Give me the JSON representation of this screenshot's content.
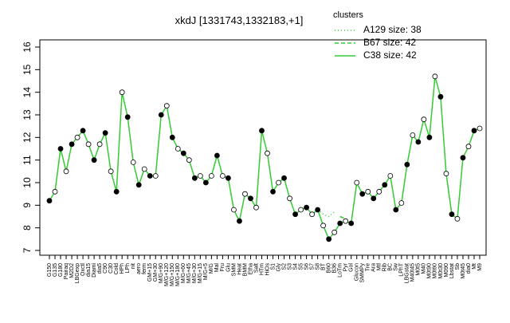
{
  "chart_data": {
    "type": "line",
    "title": "xkdJ [1331743,1332183,+1]",
    "legend_title": "clusters",
    "ylim": [
      7,
      16
    ],
    "yticks": [
      7,
      8,
      9,
      10,
      11,
      12,
      13,
      14,
      15,
      16
    ],
    "categories": [
      "G150",
      "G135",
      "G180",
      "Pairaq",
      "M2D2",
      "LBGexp",
      "Oxctl",
      "dia15",
      "Diami",
      "dia5",
      "C90",
      "C30",
      "Cold",
      "HPh",
      "LPh",
      "nit",
      "aero",
      "ferm",
      "GM+15",
      "GM+30",
      "M/G+90",
      "M/G+120",
      "M/G+150",
      "M/G+180",
      "M/G+60",
      "M/G+45",
      "M/G+30",
      "M/G+15",
      "M/G+5",
      "M/G",
      "Mal",
      "Fru",
      "Glu",
      "SMM",
      "Heat",
      "BMM",
      "Etha",
      "Salt",
      "HTm",
      "HiOs",
      "S1",
      "Gly",
      "S2",
      "S3",
      "S4",
      "S5",
      "S6",
      "S7",
      "S8",
      "BT",
      "B60",
      "B36",
      "LoTm",
      "Pyr",
      "Gol",
      "Glucon",
      "SMMPy",
      "Tre",
      "Ara",
      "Mtl",
      "Rib",
      "BC",
      "Sw",
      "LPhT",
      "LBGstat",
      "M40t45",
      "M0t5",
      "M40",
      "M0t90",
      "M0t60",
      "M0t30",
      "M090",
      "Lbstat",
      "Sb",
      "M0t45",
      "dia0",
      "Mt",
      "M9"
    ],
    "series": [
      {
        "name": "A129 size: 38",
        "color": "#33cc33",
        "style": "dotted",
        "values": [
          null,
          null,
          null,
          null,
          null,
          null,
          null,
          null,
          null,
          null,
          null,
          null,
          null,
          null,
          null,
          null,
          null,
          null,
          null,
          null,
          null,
          null,
          null,
          null,
          null,
          null,
          null,
          null,
          null,
          null,
          null,
          null,
          null,
          null,
          null,
          null,
          null,
          null,
          null,
          null,
          null,
          null,
          null,
          null,
          null,
          null,
          null,
          null,
          8.8,
          8.6,
          8.5,
          8.7,
          null,
          null,
          null,
          null,
          null,
          null,
          null,
          null,
          null,
          null,
          null,
          null,
          null,
          null,
          null,
          null,
          null,
          null,
          null,
          null,
          null,
          null,
          null,
          null,
          null,
          null
        ]
      },
      {
        "name": "B67 size: 42",
        "color": "#33cc33",
        "style": "dashed",
        "values": [
          null,
          null,
          null,
          null,
          null,
          null,
          null,
          null,
          null,
          null,
          null,
          null,
          null,
          null,
          null,
          null,
          null,
          null,
          null,
          null,
          null,
          null,
          null,
          null,
          null,
          null,
          null,
          null,
          null,
          null,
          null,
          null,
          null,
          null,
          null,
          null,
          null,
          null,
          null,
          null,
          null,
          null,
          null,
          null,
          null,
          null,
          null,
          null,
          null,
          null,
          null,
          null,
          8.5,
          8.4,
          null,
          null,
          null,
          null,
          null,
          null,
          null,
          null,
          null,
          null,
          null,
          null,
          null,
          null,
          null,
          null,
          null,
          null,
          null,
          null,
          null,
          null,
          null,
          null
        ]
      },
      {
        "name": "C38 size: 42",
        "color": "#33cc33",
        "style": "solid",
        "values": [
          9.2,
          9.6,
          11.5,
          10.5,
          11.7,
          12.0,
          12.3,
          11.7,
          11.0,
          11.7,
          12.2,
          10.5,
          9.6,
          14.0,
          12.9,
          10.9,
          9.9,
          10.6,
          10.3,
          10.3,
          13.0,
          13.4,
          12.0,
          11.5,
          11.3,
          11.0,
          10.2,
          10.3,
          10.0,
          10.3,
          11.2,
          10.3,
          10.2,
          8.8,
          8.3,
          9.5,
          9.3,
          8.9,
          12.3,
          11.3,
          9.6,
          10.0,
          10.2,
          9.3,
          8.6,
          8.8,
          8.9,
          8.6,
          8.8,
          8.1,
          7.5,
          7.8,
          8.2,
          8.3,
          8.2,
          10.0,
          9.5,
          9.6,
          9.3,
          9.6,
          9.9,
          10.3,
          8.8,
          9.1,
          10.8,
          12.1,
          11.8,
          12.8,
          12.0,
          14.7,
          13.8,
          10.4,
          8.6,
          8.4,
          11.1,
          11.6,
          12.3,
          12.4
        ]
      }
    ]
  }
}
